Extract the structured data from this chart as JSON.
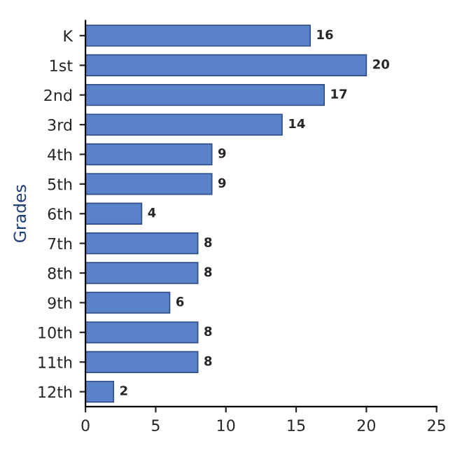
{
  "chart_data": {
    "type": "bar",
    "orientation": "horizontal",
    "ylabel": "Grades",
    "categories": [
      "K",
      "1st",
      "2nd",
      "3rd",
      "4th",
      "5th",
      "6th",
      "7th",
      "8th",
      "9th",
      "10th",
      "11th",
      "12th"
    ],
    "values": [
      16,
      20,
      17,
      14,
      9,
      9,
      4,
      8,
      8,
      6,
      8,
      8,
      2
    ],
    "color": "#5a82c8",
    "xlim": [
      0,
      25
    ],
    "xticks": [
      0,
      5,
      10,
      15,
      20,
      25
    ],
    "data_labels": true,
    "grid": false,
    "legend": false
  }
}
